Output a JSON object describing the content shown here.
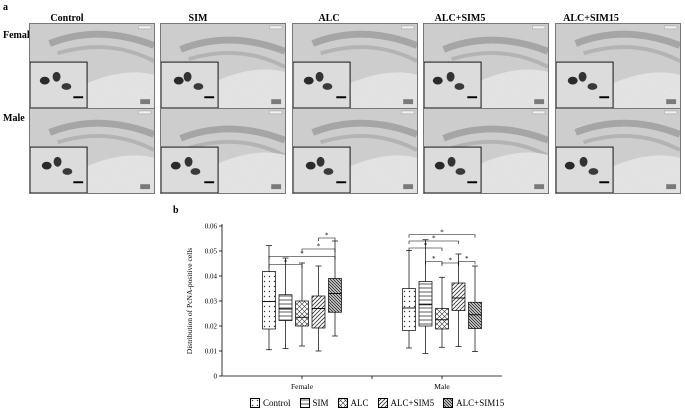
{
  "panel_a": {
    "letter": "a",
    "columns": [
      "Control",
      "SIM",
      "ALC",
      "ALC+SIM5",
      "ALC+SIM15"
    ],
    "rows": [
      "Female",
      "Male"
    ]
  },
  "panel_b": {
    "letter": "b"
  },
  "chart_data": {
    "type": "boxplot",
    "ylabel": "Distribution of PcNA-positive cells",
    "ylim": [
      0,
      0.06
    ],
    "yticks": [
      "0",
      "0.01",
      "0.02",
      "0.03",
      "0.04",
      "0.05",
      "0.06"
    ],
    "categories": [
      "Female",
      "Male"
    ],
    "series": [
      {
        "name": "Control",
        "boxes": [
          {
            "min": 0.0105,
            "q1": 0.0188,
            "median": 0.0298,
            "q3": 0.0418,
            "max": 0.0522
          },
          {
            "min": 0.0112,
            "q1": 0.0182,
            "median": 0.0272,
            "q3": 0.035,
            "max": 0.0502
          }
        ]
      },
      {
        "name": "SIM",
        "boxes": [
          {
            "min": 0.011,
            "q1": 0.0222,
            "median": 0.0268,
            "q3": 0.0325,
            "max": 0.0472
          },
          {
            "min": 0.009,
            "q1": 0.02,
            "median": 0.0285,
            "q3": 0.0378,
            "max": 0.0545
          }
        ]
      },
      {
        "name": "ALC",
        "boxes": [
          {
            "min": 0.012,
            "q1": 0.02,
            "median": 0.0235,
            "q3": 0.03,
            "max": 0.0452
          },
          {
            "min": 0.0115,
            "q1": 0.0188,
            "median": 0.0225,
            "q3": 0.027,
            "max": 0.0395
          }
        ]
      },
      {
        "name": "ALC+SIM5",
        "boxes": [
          {
            "min": 0.01,
            "q1": 0.0192,
            "median": 0.027,
            "q3": 0.032,
            "max": 0.044
          },
          {
            "min": 0.0118,
            "q1": 0.0262,
            "median": 0.0312,
            "q3": 0.0372,
            "max": 0.0488
          }
        ]
      },
      {
        "name": "ALC+SIM15",
        "boxes": [
          {
            "min": 0.016,
            "q1": 0.0255,
            "median": 0.033,
            "q3": 0.039,
            "max": 0.054
          },
          {
            "min": 0.0098,
            "q1": 0.019,
            "median": 0.0245,
            "q3": 0.0295,
            "max": 0.044
          }
        ]
      }
    ],
    "significance": [
      {
        "group": "Female",
        "from": "Control",
        "to": "ALC",
        "label": "*"
      },
      {
        "group": "Female",
        "from": "Control",
        "to": "ALC+SIM15",
        "label": "*"
      },
      {
        "group": "Female",
        "from": "ALC",
        "to": "ALC+SIM15",
        "label": "*"
      },
      {
        "group": "Female",
        "from": "ALC+SIM5",
        "to": "ALC+SIM15",
        "label": "*"
      },
      {
        "group": "Male",
        "from": "Control",
        "to": "ALC",
        "label": "*"
      },
      {
        "group": "Male",
        "from": "Control",
        "to": "ALC+SIM5",
        "label": "*"
      },
      {
        "group": "Male",
        "from": "Control",
        "to": "ALC+SIM15",
        "label": "*"
      },
      {
        "group": "Male",
        "from": "SIM",
        "to": "ALC",
        "label": "*"
      },
      {
        "group": "Male",
        "from": "ALC",
        "to": "ALC+SIM5",
        "label": "*"
      },
      {
        "group": "Male",
        "from": "ALC+SIM5",
        "to": "ALC+SIM15",
        "label": "*"
      }
    ],
    "legend": [
      "Control",
      "SIM",
      "ALC",
      "ALC+SIM5",
      "ALC+SIM15"
    ],
    "legend_position": "bottom"
  }
}
